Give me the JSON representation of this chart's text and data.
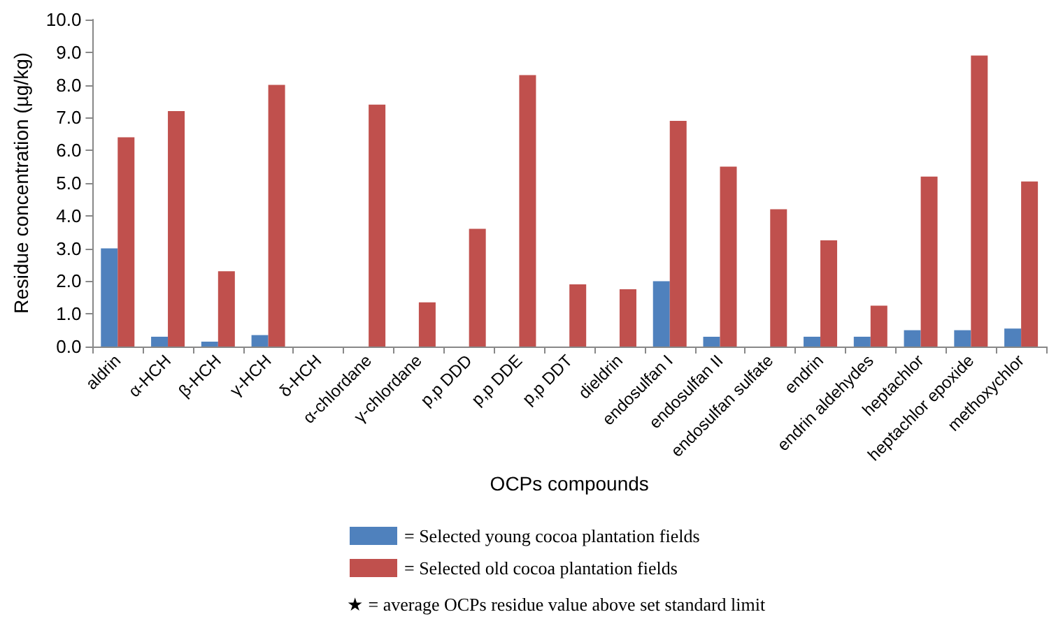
{
  "chart_data": {
    "type": "bar",
    "xlabel": "OCPs compounds",
    "ylabel": "Residue concentration (µg/kg)",
    "categories": [
      "aldrin",
      "α-HCH",
      "β-HCH",
      "γ-HCH",
      "δ-HCH",
      "α-chlordane",
      "γ-chlordane",
      "p,p DDD",
      "p,p DDE",
      "p,p DDT",
      "dieldrin",
      "endosulfan I",
      "endosulfan II",
      "endosulfan sulfate",
      "endrin",
      "endrin aldehydes",
      "heptachlor",
      "heptachlor epoxide",
      "methoxychlor"
    ],
    "series": [
      {
        "name": "= Selected young cocoa plantation fields",
        "color": "#4f81bd",
        "values": [
          3.0,
          0.3,
          0.15,
          0.35,
          0,
          0,
          0,
          0,
          0,
          0,
          0,
          2.0,
          0.3,
          0,
          0.3,
          0.3,
          0.5,
          0.5,
          0.55
        ]
      },
      {
        "name": "= Selected old cocoa plantation fields",
        "color": "#c0504d",
        "values": [
          6.4,
          7.2,
          2.3,
          8.0,
          0,
          7.4,
          1.35,
          3.6,
          8.3,
          1.9,
          1.75,
          6.9,
          5.5,
          4.2,
          3.25,
          1.25,
          5.2,
          8.9,
          5.05
        ]
      }
    ],
    "ylim": [
      0,
      10
    ],
    "yticks": [
      {
        "value": 0,
        "label": "0.0"
      },
      {
        "value": 1,
        "label": "1.0"
      },
      {
        "value": 2,
        "label": "2.0"
      },
      {
        "value": 3,
        "label": "3.0"
      },
      {
        "value": 4,
        "label": "4.0"
      },
      {
        "value": 5,
        "label": "5.0"
      },
      {
        "value": 6,
        "label": "6.0"
      },
      {
        "value": 7,
        "label": "7.0"
      },
      {
        "value": 8,
        "label": "8.0"
      },
      {
        "value": 9,
        "label": "9.0"
      },
      {
        "value": 10,
        "label": "10.0"
      }
    ],
    "grid": false,
    "legend": "bottom",
    "annotations": [
      "★ = average OCPs residue value above set standard limit"
    ]
  }
}
